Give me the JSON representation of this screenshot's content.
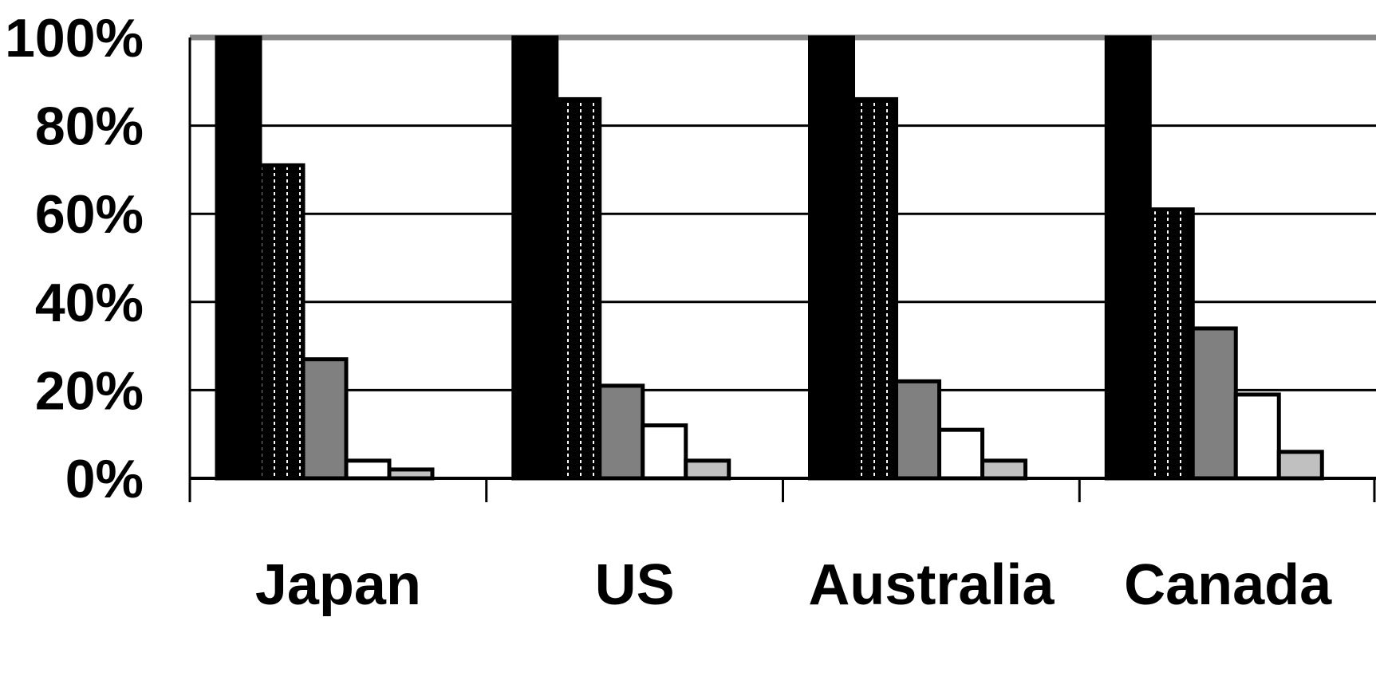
{
  "chart_data": {
    "type": "bar",
    "title": "",
    "xlabel": "",
    "ylabel": "",
    "ylim": [
      0,
      100
    ],
    "y_ticks": [
      "0%",
      "20%",
      "40%",
      "60%",
      "80%",
      "100%"
    ],
    "grid": true,
    "legend": "none",
    "categories": [
      "Japan",
      "US",
      "Australia",
      "Canada"
    ],
    "series": [
      {
        "values": [
          100,
          100,
          100,
          100
        ],
        "color": "#000000",
        "pattern": "solid"
      },
      {
        "values": [
          71,
          86,
          86,
          61
        ],
        "color": "#000000",
        "pattern": "dotted"
      },
      {
        "values": [
          27,
          21,
          22,
          34
        ],
        "color": "#808080",
        "pattern": "solid"
      },
      {
        "values": [
          4,
          12,
          11,
          19
        ],
        "color": "#ffffff",
        "pattern": "solid"
      },
      {
        "values": [
          2,
          4,
          4,
          6
        ],
        "color": "#c0c0c0",
        "pattern": "solid"
      },
      {
        "values": [
          0,
          0,
          0,
          0
        ],
        "color": "#808080",
        "pattern": "solid"
      }
    ]
  }
}
